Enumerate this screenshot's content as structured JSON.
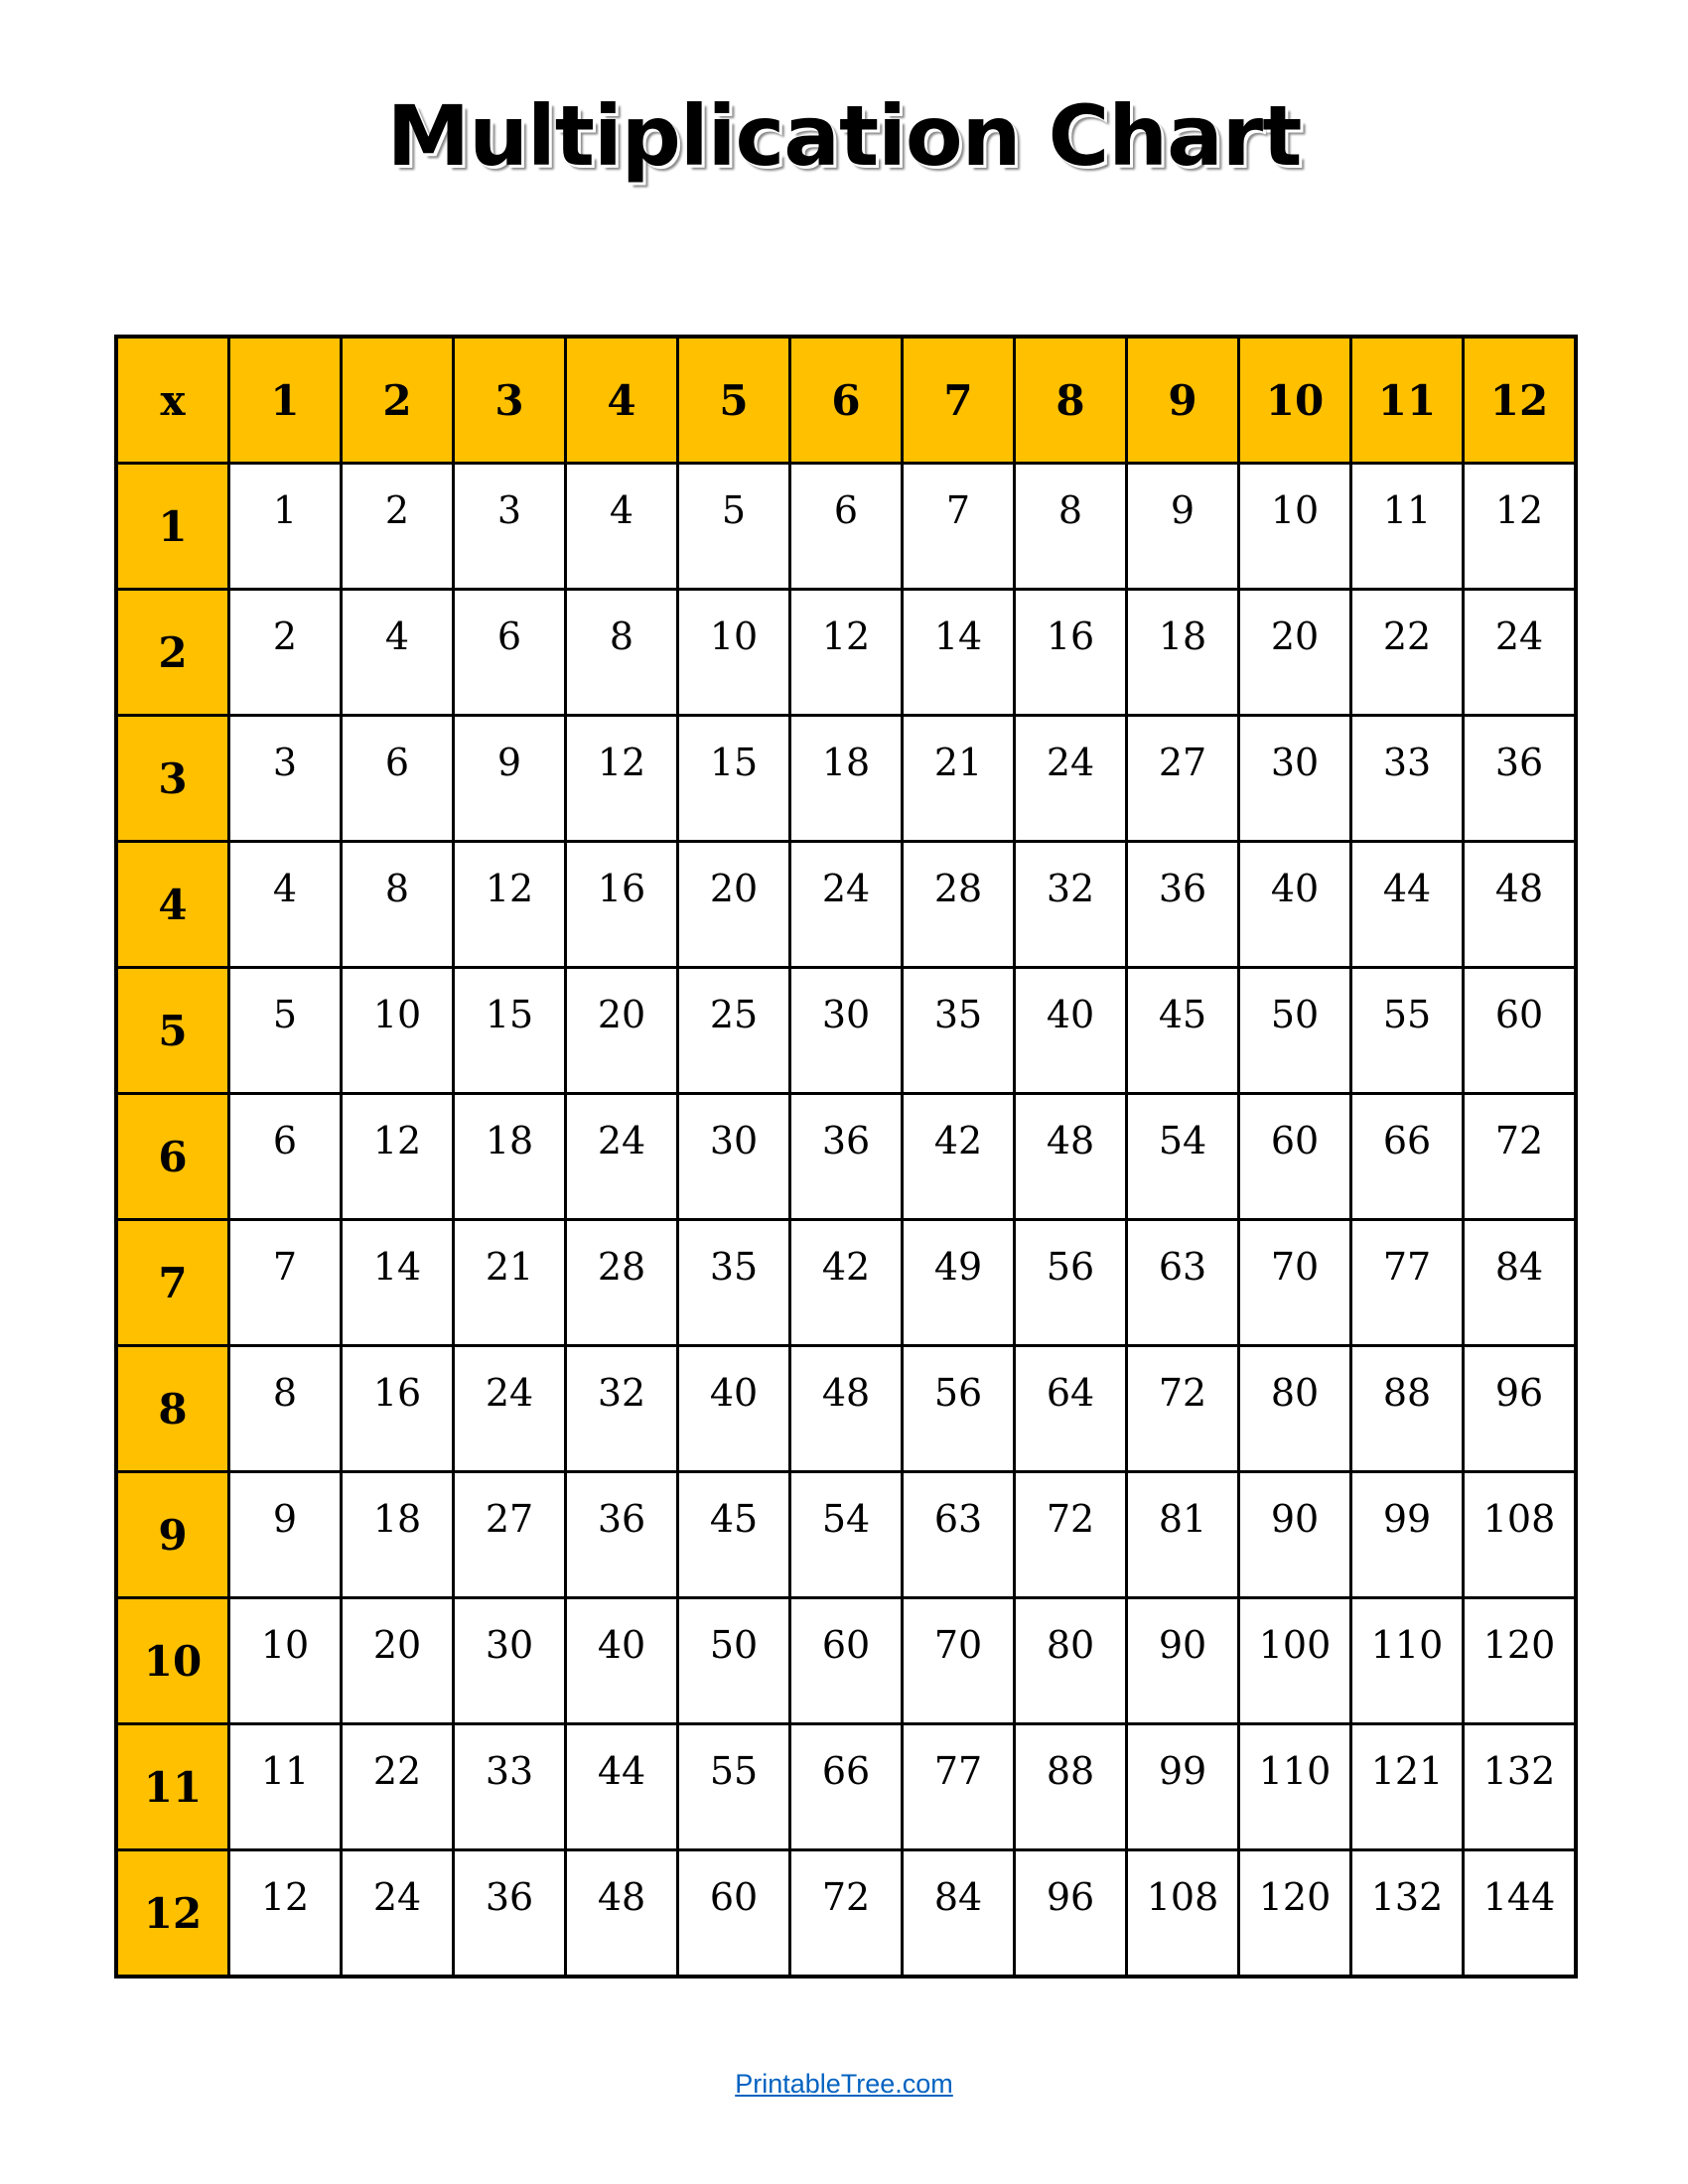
{
  "title": "Multiplication Chart",
  "table": {
    "corner": "x",
    "column_headers": [
      "1",
      "2",
      "3",
      "4",
      "5",
      "6",
      "7",
      "8",
      "9",
      "10",
      "11",
      "12"
    ],
    "row_headers": [
      "1",
      "2",
      "3",
      "4",
      "5",
      "6",
      "7",
      "8",
      "9",
      "10",
      "11",
      "12"
    ],
    "rows": [
      [
        "1",
        "2",
        "3",
        "4",
        "5",
        "6",
        "7",
        "8",
        "9",
        "10",
        "11",
        "12"
      ],
      [
        "2",
        "4",
        "6",
        "8",
        "10",
        "12",
        "14",
        "16",
        "18",
        "20",
        "22",
        "24"
      ],
      [
        "3",
        "6",
        "9",
        "12",
        "15",
        "18",
        "21",
        "24",
        "27",
        "30",
        "33",
        "36"
      ],
      [
        "4",
        "8",
        "12",
        "16",
        "20",
        "24",
        "28",
        "32",
        "36",
        "40",
        "44",
        "48"
      ],
      [
        "5",
        "10",
        "15",
        "20",
        "25",
        "30",
        "35",
        "40",
        "45",
        "50",
        "55",
        "60"
      ],
      [
        "6",
        "12",
        "18",
        "24",
        "30",
        "36",
        "42",
        "48",
        "54",
        "60",
        "66",
        "72"
      ],
      [
        "7",
        "14",
        "21",
        "28",
        "35",
        "42",
        "49",
        "56",
        "63",
        "70",
        "77",
        "84"
      ],
      [
        "8",
        "16",
        "24",
        "32",
        "40",
        "48",
        "56",
        "64",
        "72",
        "80",
        "88",
        "96"
      ],
      [
        "9",
        "18",
        "27",
        "36",
        "45",
        "54",
        "63",
        "72",
        "81",
        "90",
        "99",
        "108"
      ],
      [
        "10",
        "20",
        "30",
        "40",
        "50",
        "60",
        "70",
        "80",
        "90",
        "100",
        "110",
        "120"
      ],
      [
        "11",
        "22",
        "33",
        "44",
        "55",
        "66",
        "77",
        "88",
        "99",
        "110",
        "121",
        "132"
      ],
      [
        "12",
        "24",
        "36",
        "48",
        "60",
        "72",
        "84",
        "96",
        "108",
        "120",
        "132",
        "144"
      ]
    ]
  },
  "colors": {
    "header_fill": "#FFC000",
    "link": "#0563C1"
  },
  "footer": {
    "link_text": "PrintableTree.com"
  }
}
